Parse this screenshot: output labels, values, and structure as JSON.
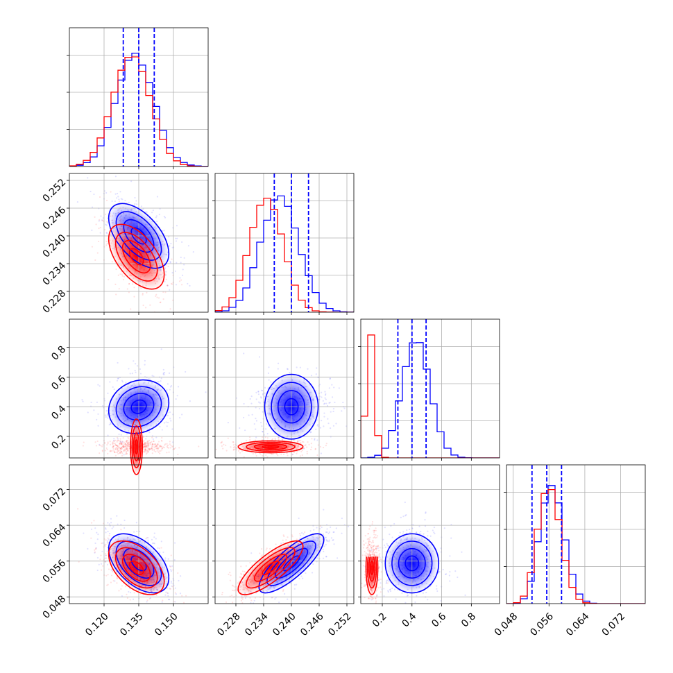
{
  "chart_data": {
    "type": "corner",
    "title": "",
    "grid": true,
    "colors": {
      "blue": "#0000ff",
      "red": "#ff0000"
    },
    "series": [
      {
        "color": "#0000ff",
        "means": [
          0.135,
          0.24,
          0.4,
          0.0555
        ],
        "sds": [
          0.0065,
          0.0035,
          0.09,
          0.0033
        ]
      },
      {
        "color": "#ff0000",
        "means": [
          0.134,
          0.2355,
          0.13,
          0.0545
        ],
        "sds": [
          0.006,
          0.0035,
          0.02,
          0.003
        ]
      }
    ],
    "correlations": {
      "blue": {
        "1-0": -0.55,
        "2-0": 0.15,
        "2-1": 0.0,
        "3-0": -0.5,
        "3-1": 0.8,
        "3-2": 0.0
      },
      "red": {
        "1-0": -0.55,
        "2-0": 0.0,
        "2-1": 0.0,
        "3-0": -0.5,
        "3-1": 0.8,
        "3-2": 0.0
      }
    },
    "quantiles_blue": [
      [
        0.1283,
        0.135,
        0.1417
      ],
      [
        0.2363,
        0.24,
        0.2437
      ],
      [
        0.305,
        0.4,
        0.495
      ],
      [
        0.0522,
        0.0555,
        0.0588
      ]
    ],
    "ranges": [
      [
        0.105,
        0.165
      ],
      [
        0.2235,
        0.2535
      ],
      [
        0.055,
        0.99
      ],
      [
        0.0465,
        0.0775
      ]
    ],
    "ticks": [
      [
        "0.120",
        "0.135",
        "0.150"
      ],
      [
        "0.228",
        "0.234",
        "0.240",
        "0.246",
        "0.252"
      ],
      [
        "0.2",
        "0.4",
        "0.6",
        "0.8"
      ],
      [
        "0.048",
        "0.056",
        "0.064",
        "0.072"
      ]
    ],
    "histogram": {
      "blue": [
        [
          0.3,
          0.9,
          2.8,
          6.9,
          14.9,
          28.2,
          45.4,
          62.3,
          76.5,
          81.7,
          73.1,
          60.6,
          43.3,
          26.0,
          13.6,
          6.5,
          2.9,
          1.1,
          0.4,
          0.1
        ],
        [
          0.3,
          1.0,
          3.5,
          8.5,
          17.5,
          32.1,
          50.5,
          66.3,
          80.9,
          83.8,
          76.3,
          60.7,
          41.6,
          26.3,
          14.2,
          6.5,
          2.7,
          1.0,
          0.3,
          0.1
        ],
        [
          0.0,
          0.4,
          1.9,
          7.0,
          19.7,
          41.1,
          65.8,
          82.9,
          83.1,
          64.0,
          39.0,
          18.8,
          7.0,
          2.1,
          0.5,
          0.1,
          0.0,
          0.0,
          0.0,
          0.0
        ],
        [
          0.0,
          0.4,
          3.5,
          16.1,
          44.6,
          72.5,
          85.1,
          72.6,
          45.9,
          21.2,
          6.9,
          1.8,
          0.3,
          0.0,
          0.0,
          0.0,
          0.0,
          0.0,
          0.0,
          0.0
        ]
      ],
      "red": [
        [
          0.5,
          1.6,
          4.4,
          10.2,
          20.6,
          35.9,
          53.6,
          69.4,
          78.7,
          79.0,
          68.4,
          51.2,
          34.3,
          19.5,
          9.4,
          4.1,
          1.4,
          0.4,
          0.1,
          0.0
        ],
        [
          1.2,
          3.8,
          10.5,
          23.0,
          40.8,
          61.2,
          77.1,
          82.2,
          74.1,
          56.4,
          36.3,
          19.5,
          8.7,
          3.3,
          1.0,
          0.3,
          0.1,
          0.0,
          0.0,
          0.0
        ],
        [
          30.1,
          88.6,
          16.1,
          0.4,
          0.0,
          0.0,
          0.0,
          0.0,
          0.0,
          0.0,
          0.0,
          0.0,
          0.0,
          0.0,
          0.0,
          0.0,
          0.0,
          0.0,
          0.0,
          0.0
        ],
        [
          0.0,
          0.7,
          5.4,
          22.3,
          53.7,
          79.3,
          82.2,
          60.6,
          31.2,
          11.7,
          3.1,
          0.6,
          0.1,
          0.0,
          0.0,
          0.0,
          0.0,
          0.0,
          0.0,
          0.0
        ]
      ]
    }
  }
}
